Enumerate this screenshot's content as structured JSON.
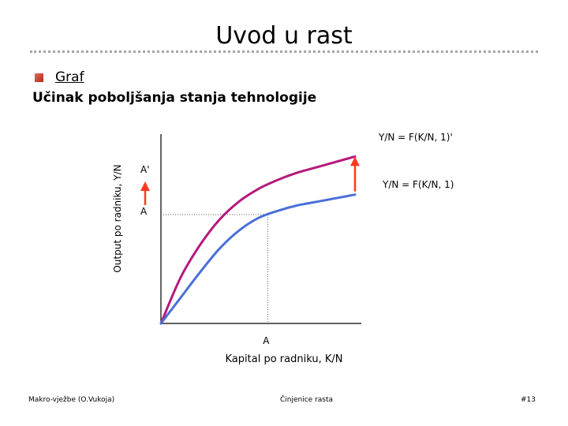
{
  "slide": {
    "title": "Uvod u rast",
    "bullet": "Graf",
    "subtitle": "Učinak poboljšanja stanja tehnologije"
  },
  "footer": {
    "left": "Makro-vježbe (O.Vukoja)",
    "center": "Činjenice rasta",
    "right": "#13"
  },
  "colors": {
    "improved_curve": "#b5197d",
    "original_curve": "#4a6fd8",
    "arrow": "#ff3b1f",
    "axis": "#000000",
    "guide": "#555555"
  },
  "chart_data": {
    "type": "line",
    "xlabel": "Kapital po radniku, K/N",
    "ylabel": "Output po radniku, Y/N",
    "x_tick": "A",
    "y_ticks": [
      "A'",
      "A"
    ],
    "series": [
      {
        "name": "Y/N = F(K/N, 1)'",
        "x": [
          0,
          0.1,
          0.2,
          0.3,
          0.4,
          0.5,
          0.6,
          0.7,
          0.8,
          0.9,
          1.0
        ],
        "y": [
          0,
          0.25,
          0.43,
          0.57,
          0.67,
          0.74,
          0.79,
          0.83,
          0.86,
          0.89,
          0.92
        ]
      },
      {
        "name": "Y/N = F(K/N, 1)",
        "x": [
          0,
          0.1,
          0.2,
          0.3,
          0.4,
          0.5,
          0.6,
          0.7,
          0.8,
          0.9,
          1.0
        ],
        "y": [
          0,
          0.14,
          0.28,
          0.41,
          0.51,
          0.58,
          0.62,
          0.65,
          0.67,
          0.69,
          0.71
        ]
      }
    ],
    "guide_x": 0.55,
    "guide_y": 0.6
  }
}
